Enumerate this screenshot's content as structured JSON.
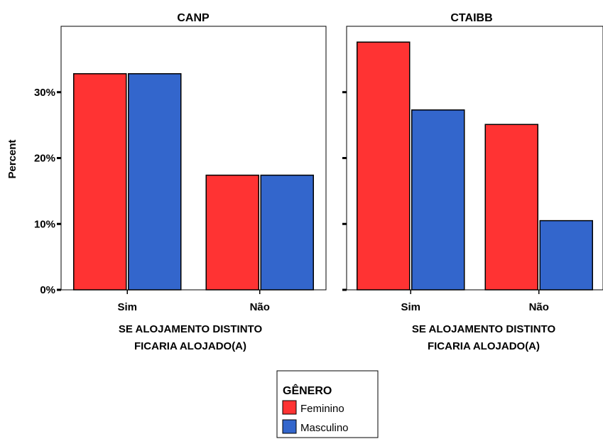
{
  "chart_data": {
    "type": "bar",
    "ylabel": "Percent",
    "xlabel": [
      "SE ALOJAMENTO DISTINTO",
      "FICARIA ALOJADO(A)"
    ],
    "ylim": [
      0,
      40
    ],
    "y_ticks": [
      0,
      10,
      20,
      30
    ],
    "y_tick_labels": [
      "0%",
      "10%",
      "20%",
      "30%"
    ],
    "categories": [
      "Sim",
      "Não"
    ],
    "legend": {
      "title": "GÊNERO",
      "placement": "bottom-center",
      "entries": [
        {
          "label": "Feminino",
          "color": "#ff3333"
        },
        {
          "label": "Masculino",
          "color": "#3366cc"
        }
      ]
    },
    "panels": [
      {
        "title": "CANP",
        "series": [
          {
            "name": "Feminino",
            "color": "#ff3333",
            "values": [
              32.8,
              17.4
            ]
          },
          {
            "name": "Masculino",
            "color": "#3366cc",
            "values": [
              32.8,
              17.4
            ]
          }
        ]
      },
      {
        "title": "CTAIBB",
        "series": [
          {
            "name": "Feminino",
            "color": "#ff3333",
            "values": [
              37.6,
              25.1
            ]
          },
          {
            "name": "Masculino",
            "color": "#3366cc",
            "values": [
              27.3,
              10.5
            ]
          }
        ]
      }
    ]
  }
}
